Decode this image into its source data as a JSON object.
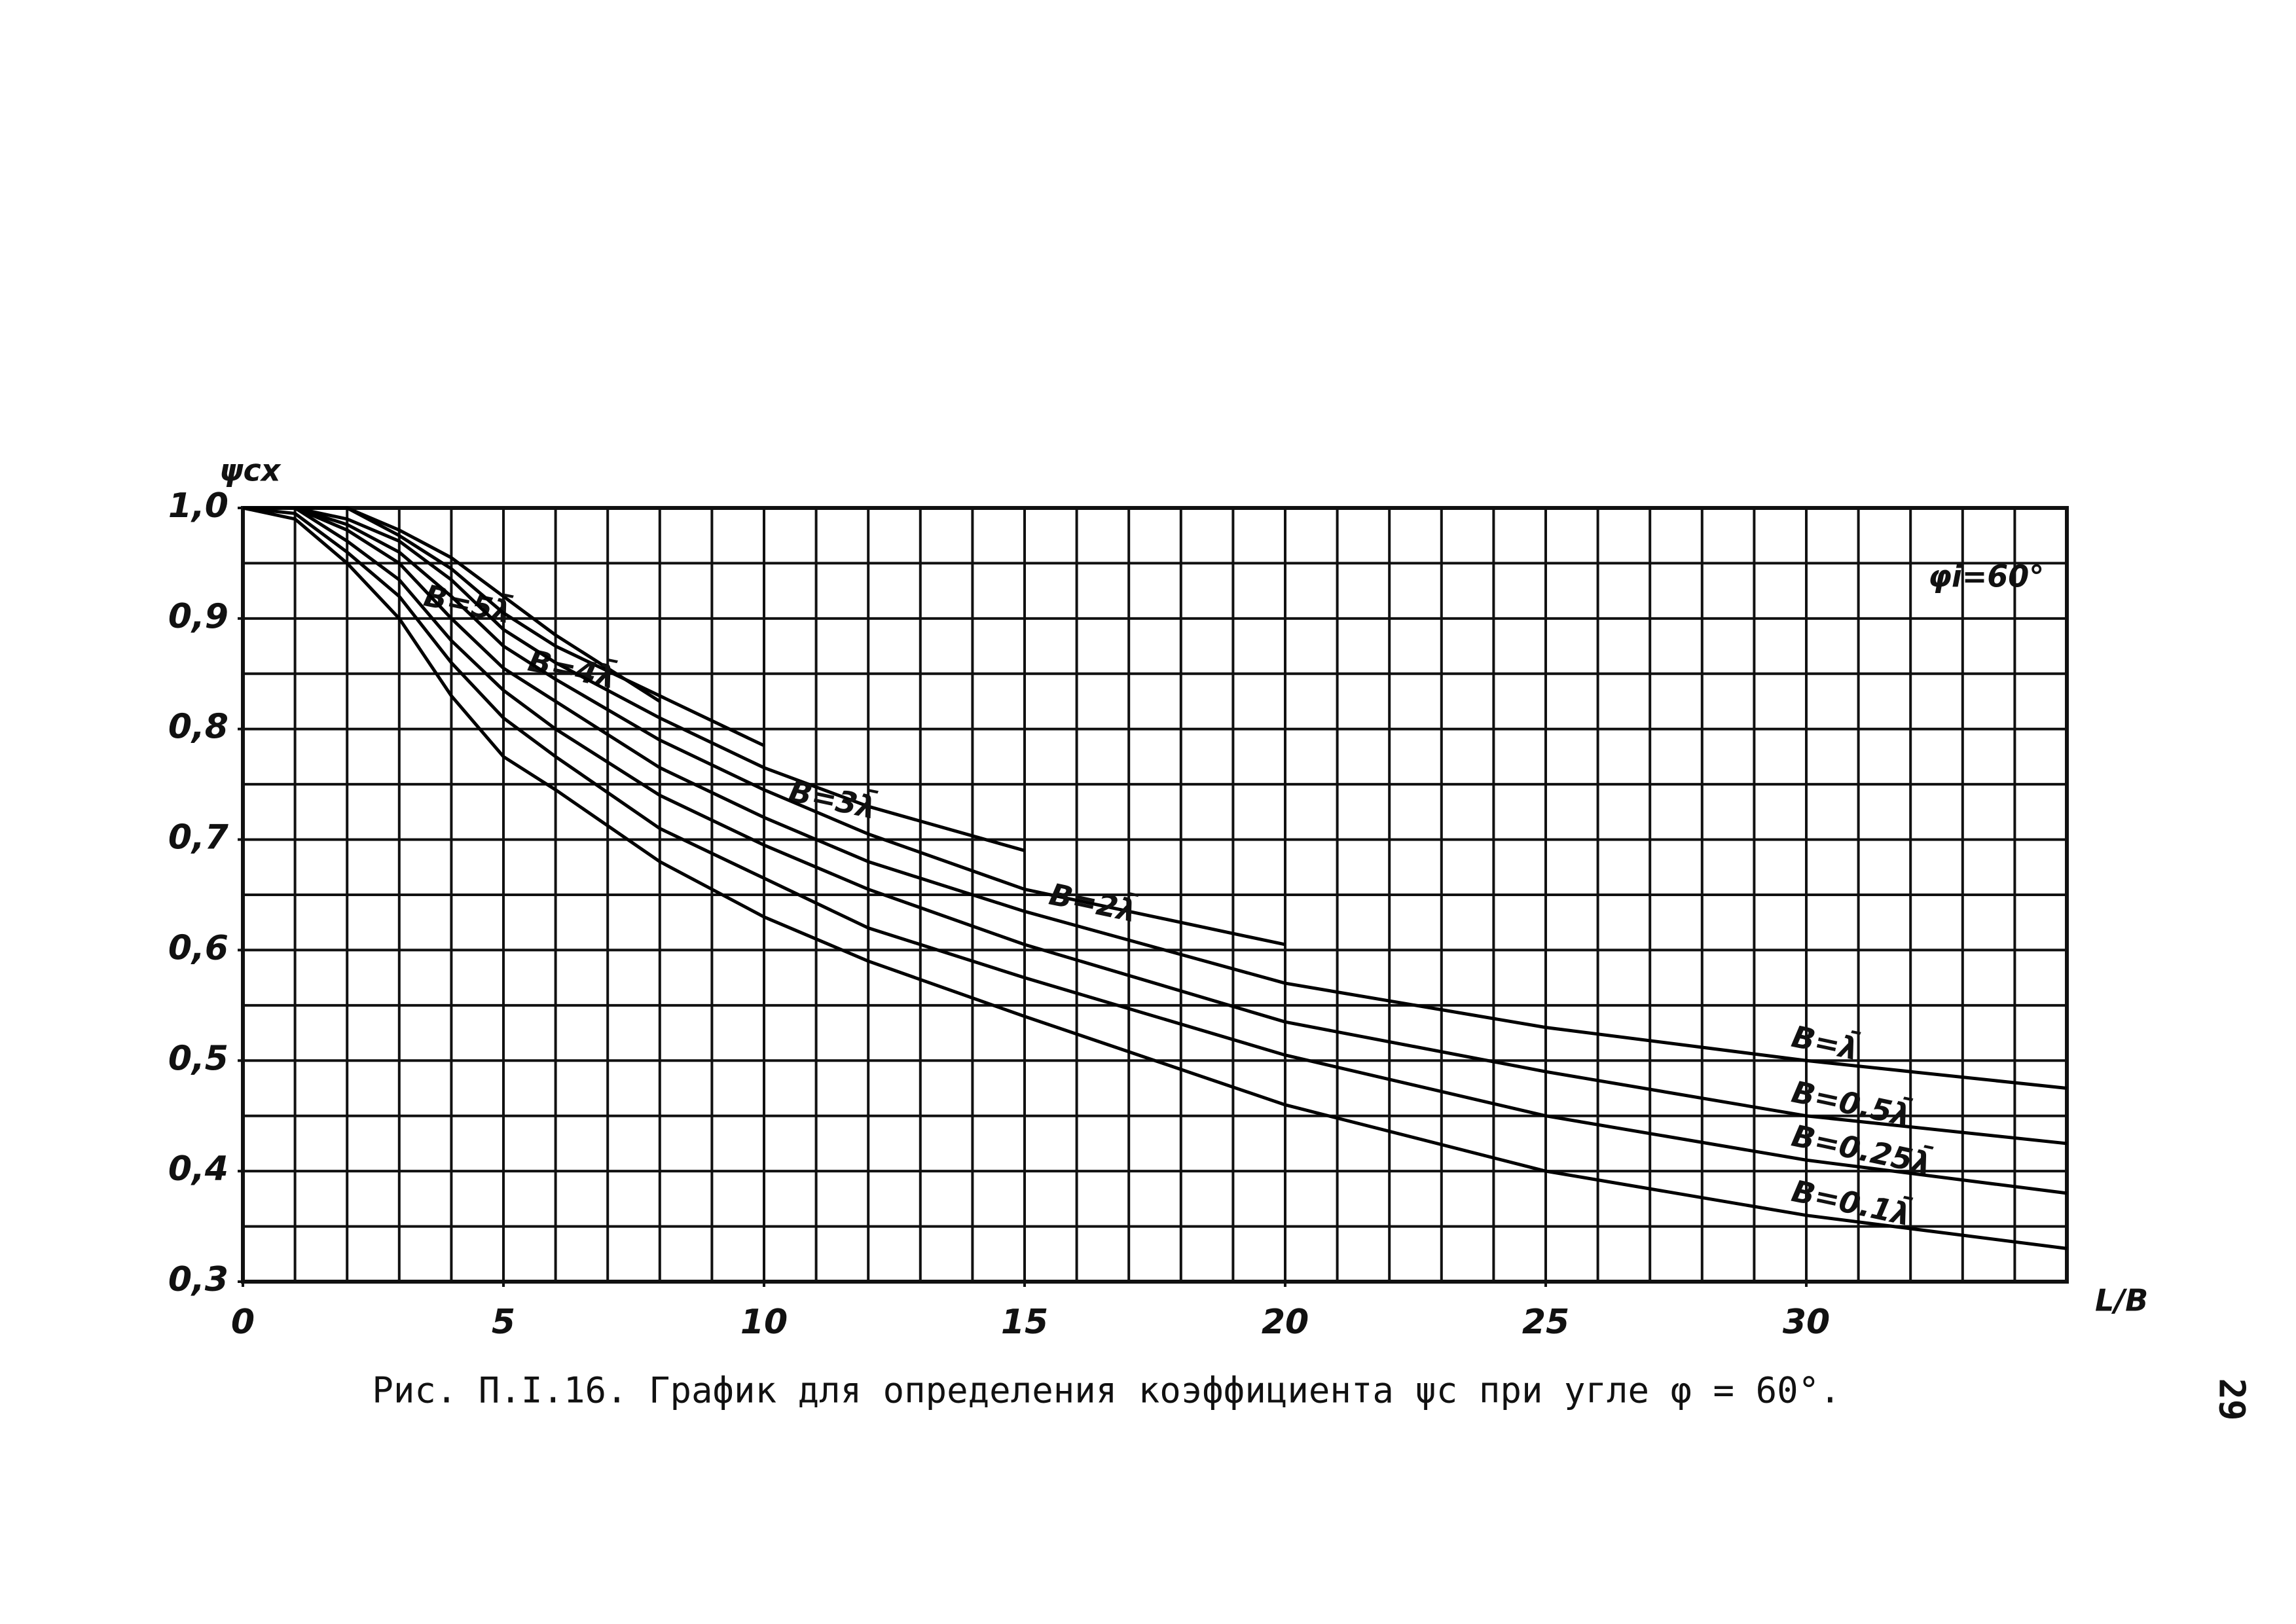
{
  "chart_data": {
    "type": "line",
    "title": "Рис. П.I.16. График для определения коэффициента ψc при угле φ = 60°.",
    "page_number": "29",
    "y_label": "ψcx",
    "x_label": "L/B",
    "annotation": "φi=60°",
    "x": [
      0,
      1,
      2,
      3,
      4,
      5,
      6,
      8,
      10,
      12,
      15,
      20,
      25,
      30,
      35
    ],
    "series": [
      {
        "name": "B=5λ̄",
        "color": "#000000",
        "values": [
          1.0,
          1.0,
          1.0,
          0.98,
          0.955,
          0.92,
          0.885,
          0.825,
          null,
          null,
          null,
          null,
          null,
          null,
          null
        ]
      },
      {
        "name": "B=4λ̄",
        "color": "#000000",
        "values": [
          1.0,
          1.0,
          1.0,
          0.975,
          0.945,
          0.905,
          0.875,
          0.83,
          0.785,
          null,
          null,
          null,
          null,
          null,
          null
        ]
      },
      {
        "name": "B=3λ̄",
        "color": "#000000",
        "values": [
          1.0,
          1.0,
          0.99,
          0.97,
          0.935,
          0.89,
          0.86,
          0.81,
          0.765,
          0.73,
          0.69,
          null,
          null,
          null,
          null
        ]
      },
      {
        "name": "B=2λ̄",
        "color": "#000000",
        "values": [
          1.0,
          1.0,
          0.985,
          0.96,
          0.92,
          0.875,
          0.845,
          0.79,
          0.745,
          0.705,
          0.655,
          0.605,
          null,
          null,
          null
        ]
      },
      {
        "name": "B=λ̄",
        "color": "#000000",
        "values": [
          1.0,
          1.0,
          0.98,
          0.95,
          0.9,
          0.855,
          0.825,
          0.765,
          0.72,
          0.68,
          0.635,
          0.57,
          0.53,
          0.5,
          0.475
        ]
      },
      {
        "name": "B=0.5λ̄",
        "color": "#000000",
        "values": [
          1.0,
          1.0,
          0.97,
          0.935,
          0.88,
          0.835,
          0.8,
          0.74,
          0.695,
          0.655,
          0.605,
          0.535,
          0.49,
          0.45,
          0.425
        ]
      },
      {
        "name": "B=0.25λ̄",
        "color": "#000000",
        "values": [
          1.0,
          0.995,
          0.96,
          0.92,
          0.86,
          0.81,
          0.775,
          0.71,
          0.665,
          0.62,
          0.575,
          0.505,
          0.45,
          0.41,
          0.38
        ]
      },
      {
        "name": "B=0.1λ̄",
        "color": "#000000",
        "values": [
          1.0,
          0.99,
          0.95,
          0.9,
          0.83,
          0.775,
          0.745,
          0.68,
          0.63,
          0.59,
          0.54,
          0.46,
          0.4,
          0.36,
          0.33
        ]
      }
    ],
    "xlim": [
      0,
      35
    ],
    "ylim": [
      0.3,
      1.0
    ],
    "xticks": [
      0,
      5,
      10,
      15,
      20,
      25,
      30
    ],
    "yticks": [
      {
        "value": 0.3,
        "label": "0,3"
      },
      {
        "value": 0.4,
        "label": "0,4"
      },
      {
        "value": 0.5,
        "label": "0,5"
      },
      {
        "value": 0.6,
        "label": "0,6"
      },
      {
        "value": 0.7,
        "label": "0,7"
      },
      {
        "value": 0.8,
        "label": "0,8"
      },
      {
        "value": 0.9,
        "label": "0,9"
      },
      {
        "value": 1.0,
        "label": "1,0"
      }
    ],
    "grid": true,
    "grid_step": {
      "x": 1,
      "y": 0.05
    }
  }
}
